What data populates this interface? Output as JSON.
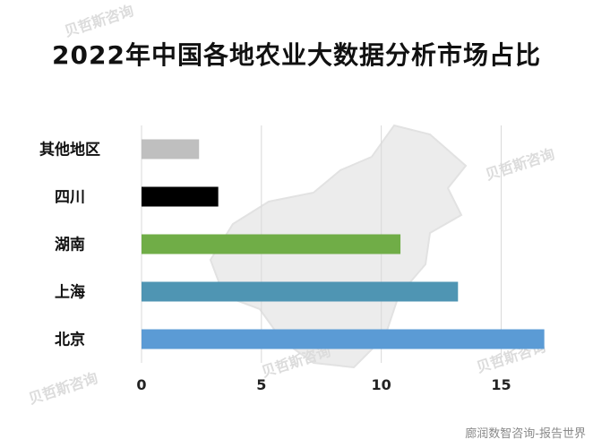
{
  "title": "2022年中国各地农业大数据分析市场占比",
  "watermark_text": "贝哲斯咨询",
  "credit": "廊润数智咨询-报告世界",
  "chart_data": {
    "type": "bar",
    "orientation": "horizontal",
    "title": "2022年中国各地农业大数据分析市场占比",
    "xlabel": "",
    "ylabel": "",
    "categories": [
      "北京",
      "上海",
      "湖南",
      "四川",
      "其他地区"
    ],
    "values": [
      16.8,
      13.2,
      10.8,
      3.2,
      2.4
    ],
    "colors": [
      "#5b9bd5",
      "#4f95b3",
      "#70ad47",
      "#000000",
      "#bfbfbf"
    ],
    "xlim": [
      0,
      17
    ],
    "xticks": [
      "0",
      "5",
      "10",
      "15"
    ],
    "grid": true,
    "legend": "none"
  }
}
